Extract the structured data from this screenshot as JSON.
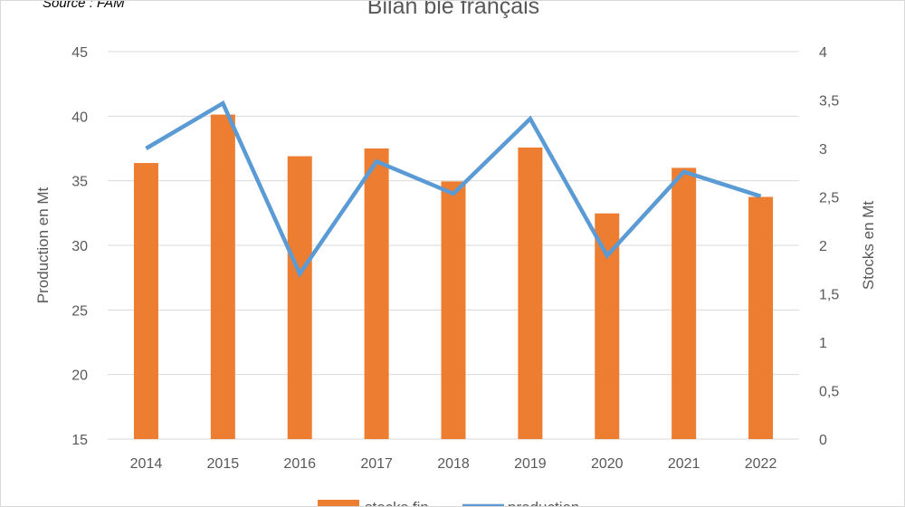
{
  "source_note": "Source : FAM",
  "chart_data": {
    "type": "bar",
    "title": "Bilan blé français",
    "categories": [
      "2014",
      "2015",
      "2016",
      "2017",
      "2018",
      "2019",
      "2020",
      "2021",
      "2022"
    ],
    "series": [
      {
        "name": "stocks fin",
        "type": "bar",
        "axis": "right",
        "color": "#ed7d31",
        "values": [
          2.85,
          3.35,
          2.92,
          3.0,
          2.66,
          3.01,
          2.33,
          2.8,
          2.5
        ]
      },
      {
        "name": "production",
        "type": "line",
        "axis": "left",
        "color": "#5b9bd5",
        "values": [
          37.5,
          41.0,
          27.8,
          36.5,
          34.0,
          39.8,
          29.2,
          35.7,
          33.8
        ]
      }
    ],
    "ylabel": "Production en Mt",
    "y2label": "Stocks en Mt",
    "ylim": [
      15,
      45
    ],
    "y2lim": [
      0,
      4
    ],
    "yticks": [
      "45",
      "40",
      "35",
      "30",
      "25",
      "20",
      "15"
    ],
    "y2ticks": [
      "4",
      "3,5",
      "3",
      "2,5",
      "2",
      "1,5",
      "1",
      "0,5",
      "0"
    ],
    "grid": true,
    "legend": "bottom"
  }
}
